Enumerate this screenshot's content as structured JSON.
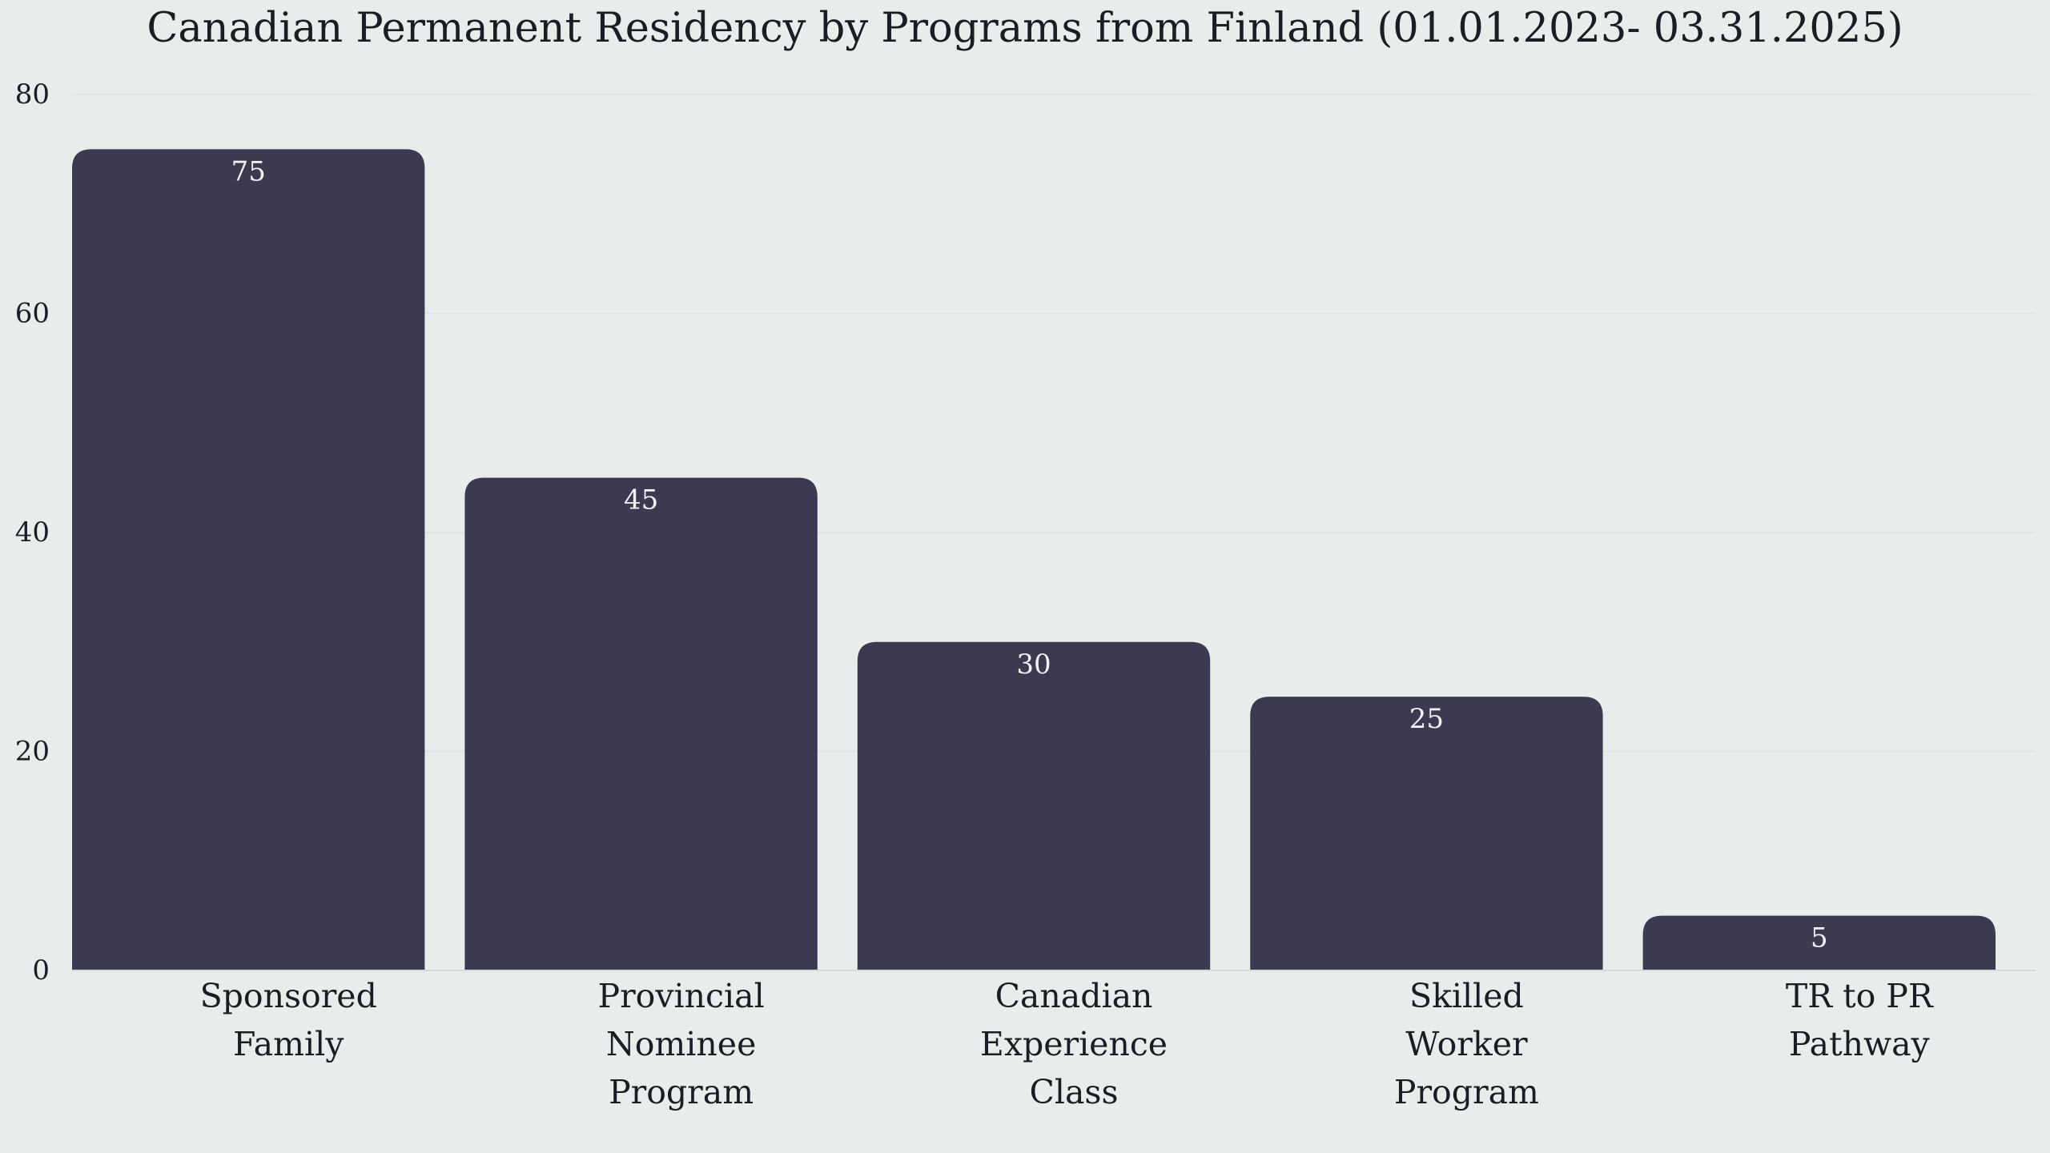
{
  "colors": {
    "background": "#e8edec",
    "bar": "#3d3950",
    "gridline": "#dde3e2",
    "axis": "#d4dad9",
    "text": "#1c1c24",
    "data_label": "#f2f2f4"
  },
  "chart_data": {
    "type": "bar",
    "title": "Canadian Permanent Residency by Programs from Finland (01.01.2023- 03.31.2025)",
    "xlabel": "",
    "ylabel": "",
    "categories": [
      [
        "Sponsored",
        "Family"
      ],
      [
        "Provincial",
        "Nominee",
        "Program"
      ],
      [
        "Canadian",
        "Experience",
        "Class"
      ],
      [
        "Skilled",
        "Worker",
        "Program"
      ],
      [
        "TR to PR",
        "Pathway"
      ]
    ],
    "values": [
      75,
      45,
      30,
      25,
      5
    ],
    "ylim": [
      0,
      80
    ],
    "yticks": [
      0,
      20,
      40,
      60,
      80
    ],
    "grid": true,
    "legend": "none",
    "data_labels": true
  }
}
